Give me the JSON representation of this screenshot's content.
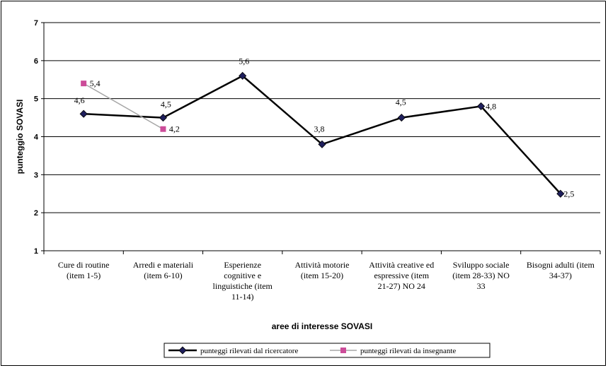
{
  "chart_data": {
    "type": "line",
    "title": "",
    "xlabel": "aree di interesse SOVASI",
    "ylabel": "punteggio SOVASI",
    "ylim": [
      1,
      7
    ],
    "y_ticks": [
      "1",
      "2",
      "3",
      "4",
      "5",
      "6",
      "7"
    ],
    "grid": true,
    "legend_position": "bottom",
    "categories": [
      [
        "Cure di routine",
        "(item 1-5)"
      ],
      [
        "Arredi e materiali",
        "(item 6-10)"
      ],
      [
        "Esperienze",
        "cognitive e",
        "linguistiche (item",
        "11-14)"
      ],
      [
        "Attività motorie",
        "(item 15-20)"
      ],
      [
        "Attività creative ed",
        "espressive (item",
        "21-27) NO 24"
      ],
      [
        "Sviluppo sociale",
        "(item 28-33) NO",
        "33"
      ],
      [
        "Bisogni adulti (item",
        "34-37)"
      ]
    ],
    "series": [
      {
        "name": "punteggi rilevati dal ricercatore",
        "color": "#1f1f5c",
        "marker": "diamond",
        "values": [
          4.6,
          4.5,
          5.6,
          3.8,
          4.5,
          4.8,
          2.5
        ],
        "labels": [
          "4,6",
          "4,5",
          "5,6",
          "3,8",
          "4,5",
          "4,8",
          "2,5"
        ]
      },
      {
        "name": "punteggi rilevati da insegnante",
        "color": "#cc4c99",
        "line_color": "#a6a6a6",
        "marker": "square",
        "values": [
          5.4,
          4.2,
          null,
          null,
          null,
          null,
          null
        ],
        "labels": [
          "5,4",
          "4,2",
          null,
          null,
          null,
          null,
          null
        ]
      }
    ]
  }
}
